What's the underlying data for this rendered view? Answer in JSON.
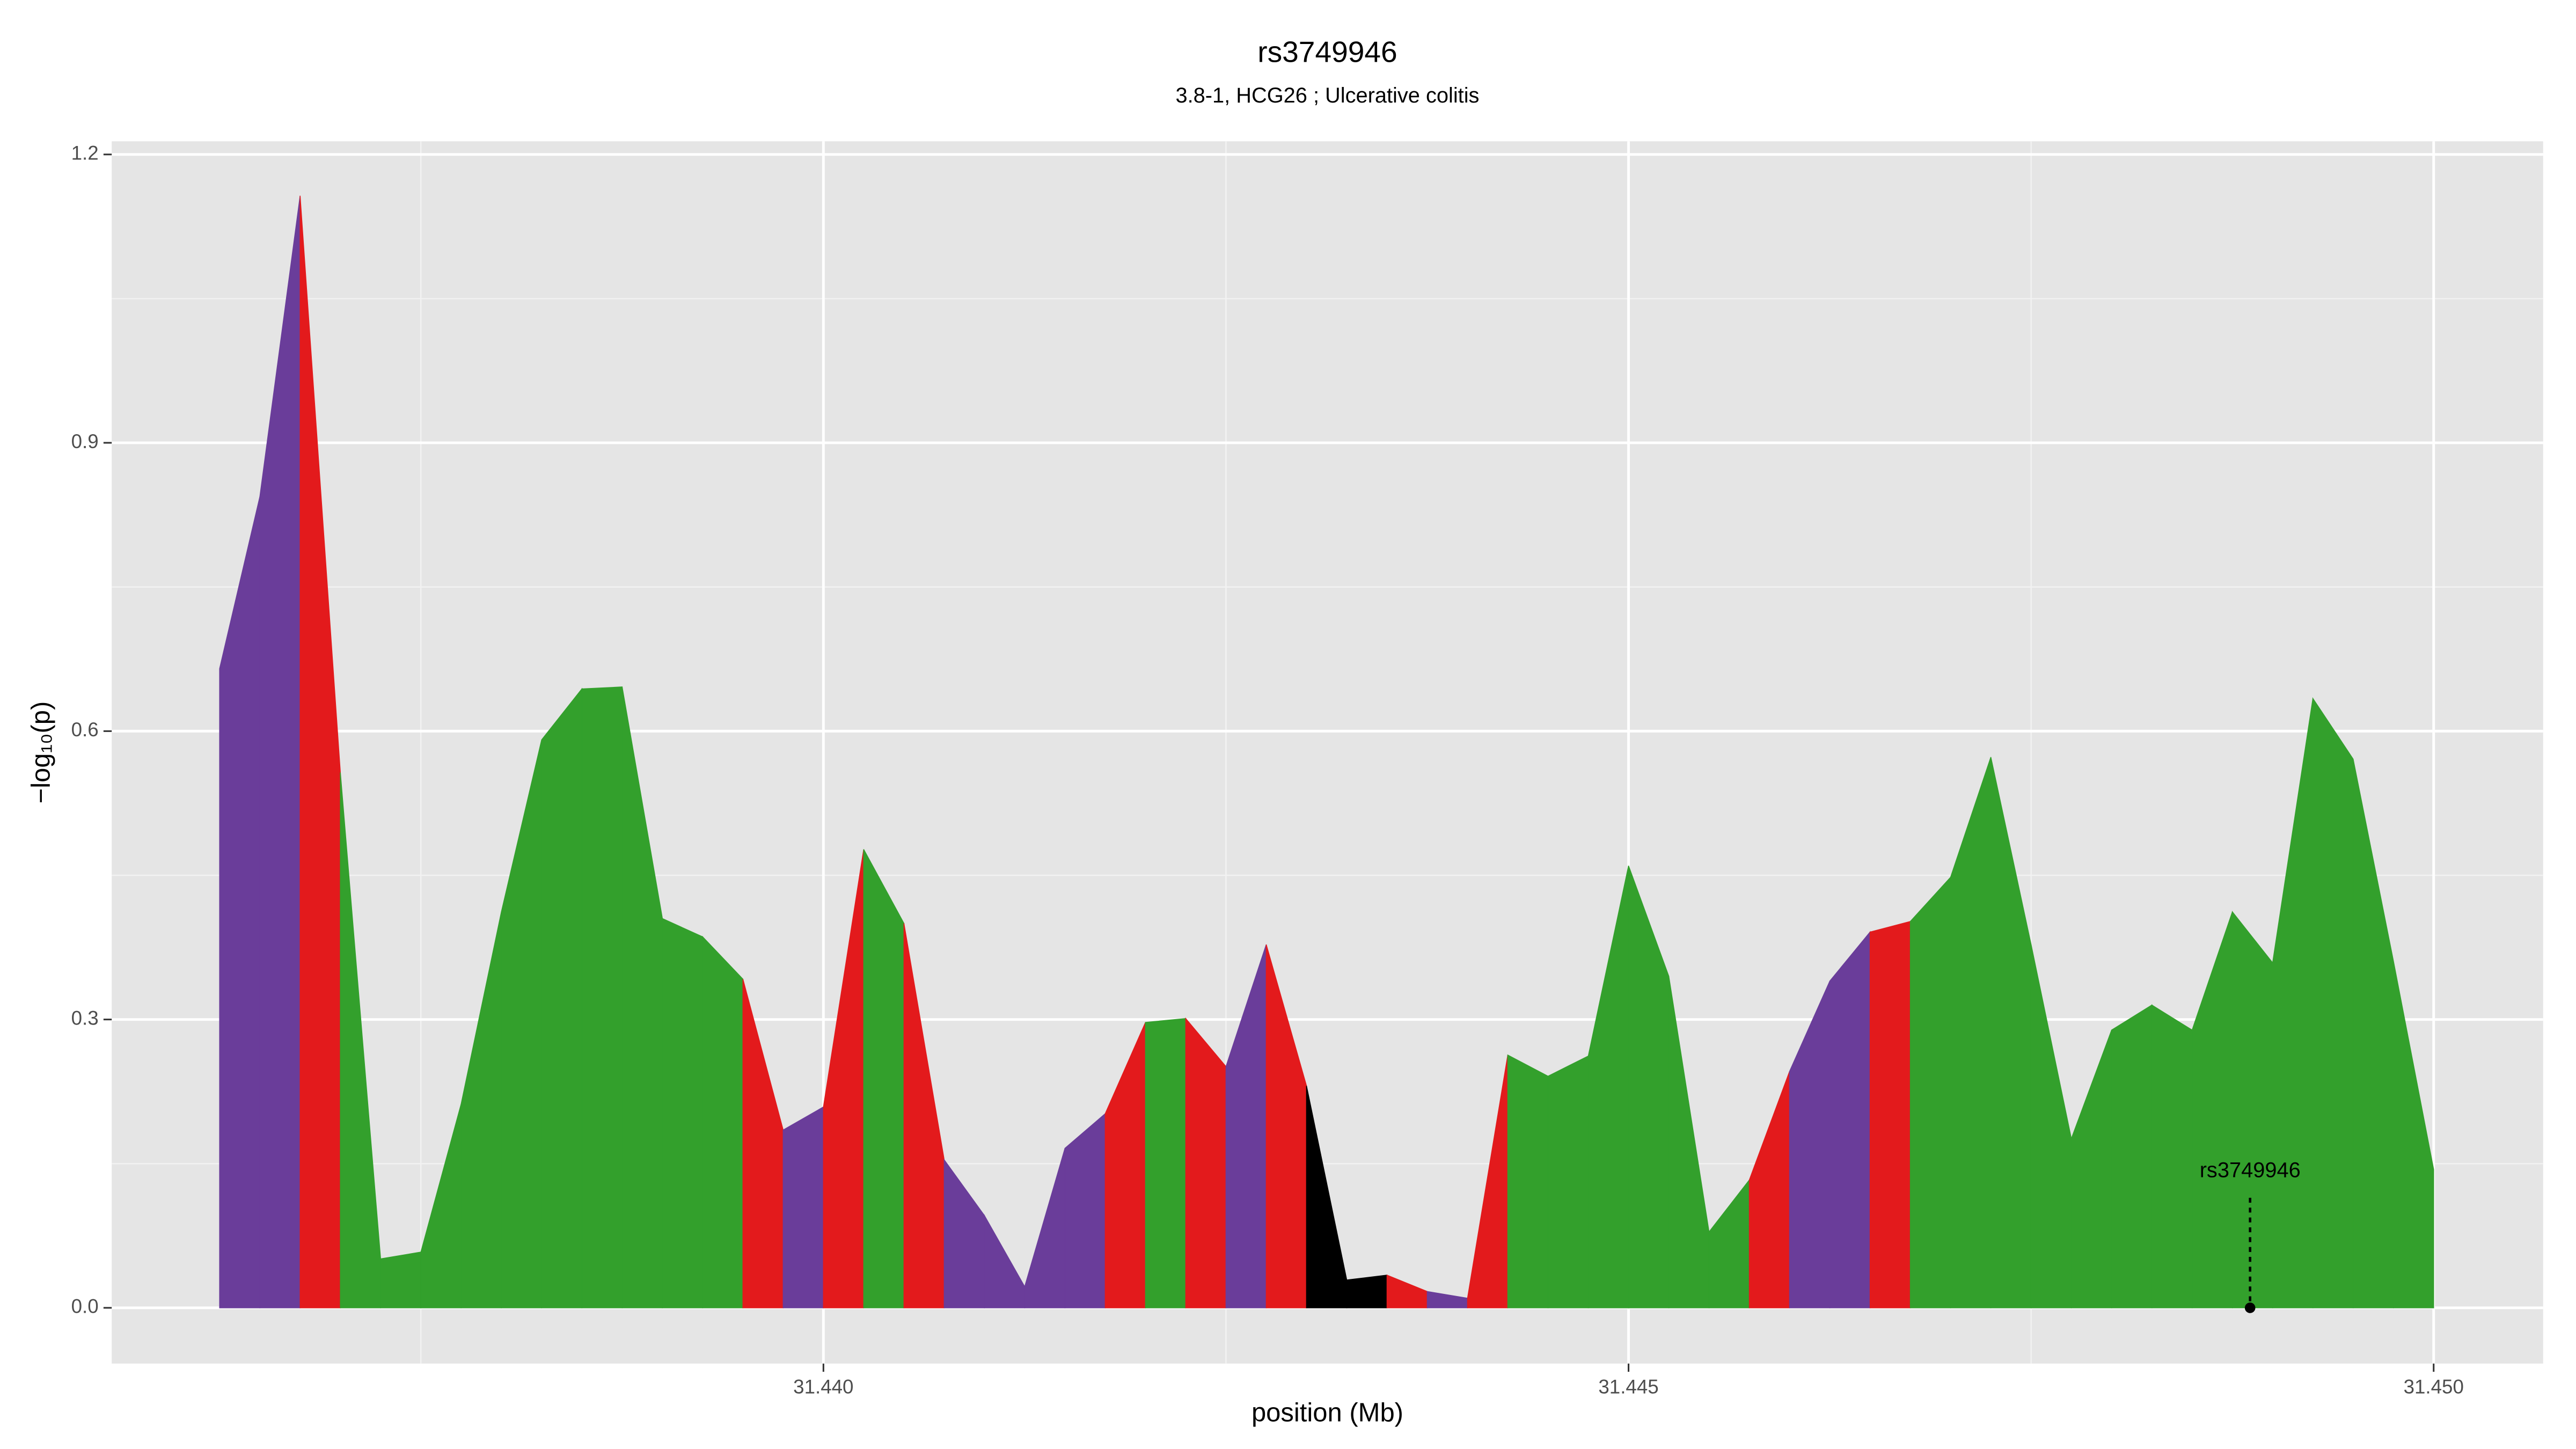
{
  "chart_data": {
    "type": "area",
    "title": "rs3749946",
    "subtitle": "3.8-1, HCG26 ; Ulcerative colitis",
    "xlabel": "position (Mb)",
    "ylabel": "−log₁₀(p)",
    "x": [
      31.43625,
      31.4365,
      31.43675,
      31.437,
      31.43725,
      31.4375,
      31.43775,
      31.438,
      31.43825,
      31.4385,
      31.43875,
      31.439,
      31.43925,
      31.4395,
      31.43975,
      31.44,
      31.44025,
      31.4405,
      31.44075,
      31.441,
      31.44125,
      31.4415,
      31.44175,
      31.442,
      31.44225,
      31.4425,
      31.44275,
      31.443,
      31.44325,
      31.4435,
      31.44375,
      31.444,
      31.44425,
      31.4445,
      31.44475,
      31.445,
      31.44525,
      31.4455,
      31.44575,
      31.446,
      31.44625,
      31.4465,
      31.44675,
      31.447,
      31.44725,
      31.4475,
      31.44775,
      31.448,
      31.44825,
      31.4485,
      31.44875,
      31.449,
      31.44925,
      31.4495,
      31.44975,
      31.45
    ],
    "values": [
      0.665,
      0.844,
      1.157,
      0.557,
      0.051,
      0.058,
      0.212,
      0.412,
      0.591,
      0.644,
      0.646,
      0.405,
      0.386,
      0.342,
      0.185,
      0.209,
      0.477,
      0.4,
      0.154,
      0.096,
      0.022,
      0.166,
      0.202,
      0.297,
      0.301,
      0.251,
      0.378,
      0.231,
      0.029,
      0.034,
      0.017,
      0.01,
      0.263,
      0.241,
      0.262,
      0.46,
      0.345,
      0.079,
      0.133,
      0.246,
      0.34,
      0.391,
      0.402,
      0.448,
      0.573,
      0.378,
      0.176,
      0.289,
      0.315,
      0.289,
      0.412,
      0.359,
      0.634,
      0.571,
      0.361,
      0.144
    ],
    "segment_colors": [
      "#6a3d9a",
      "#6a3d9a",
      "#e31a1c",
      "#33a02c",
      "#33a02c",
      "#33a02c",
      "#33a02c",
      "#33a02c",
      "#33a02c",
      "#33a02c",
      "#33a02c",
      "#33a02c",
      "#33a02c",
      "#e31a1c",
      "#6a3d9a",
      "#e31a1c",
      "#33a02c",
      "#e31a1c",
      "#6a3d9a",
      "#6a3d9a",
      "#6a3d9a",
      "#6a3d9a",
      "#e31a1c",
      "#33a02c",
      "#e31a1c",
      "#6a3d9a",
      "#e31a1c",
      "#000000",
      "#000000",
      "#e31a1c",
      "#6a3d9a",
      "#e31a1c",
      "#33a02c",
      "#33a02c",
      "#33a02c",
      "#33a02c",
      "#33a02c",
      "#33a02c",
      "#e31a1c",
      "#6a3d9a",
      "#6a3d9a",
      "#e31a1c",
      "#33a02c",
      "#33a02c",
      "#33a02c",
      "#33a02c",
      "#33a02c",
      "#33a02c",
      "#33a02c",
      "#33a02c",
      "#33a02c",
      "#33a02c",
      "#33a02c",
      "#33a02c",
      "#33a02c"
    ],
    "annotation": {
      "text": "rs3749946",
      "x": 31.44886,
      "y": 0
    },
    "xlim": [
      31.43558,
      31.45068
    ],
    "ylim": [
      -0.058,
      1.2137
    ],
    "xticks": [
      {
        "value": 31.44,
        "label": "31.440"
      },
      {
        "value": 31.445,
        "label": "31.445"
      },
      {
        "value": 31.45,
        "label": "31.450"
      }
    ],
    "xminorticks": [
      31.4375,
      31.4425,
      31.4475
    ],
    "yticks": [
      {
        "value": 0,
        "label": "0.0"
      },
      0.3,
      0.6,
      0.9,
      1.2
    ],
    "yminorticks": [
      0.15,
      0.45,
      0.75,
      1.05
    ],
    "grid": true
  }
}
